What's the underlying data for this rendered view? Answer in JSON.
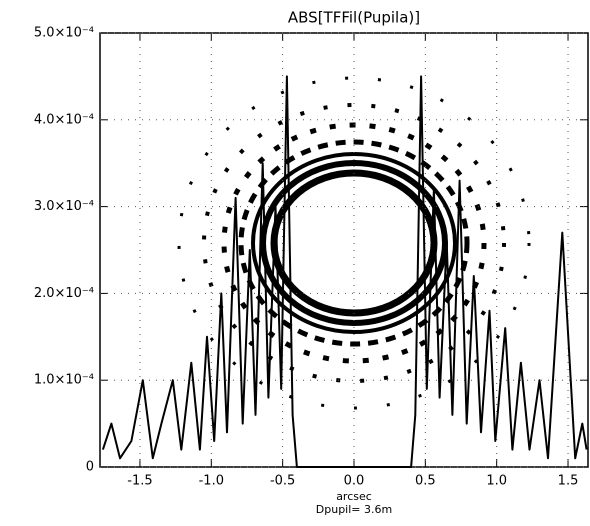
{
  "chart_data": {
    "type": "line",
    "title": "ABS[TFFil(Pupila)]",
    "x_label": "arcsec",
    "subtitle": "Dpupil= 3.6m",
    "x": [
      -1.76,
      -1.7,
      -1.64,
      -1.56,
      -1.48,
      -1.41,
      -1.35,
      -1.27,
      -1.21,
      -1.14,
      -1.08,
      -1.03,
      -0.98,
      -0.93,
      -0.89,
      -0.83,
      -0.78,
      -0.73,
      -0.69,
      -0.64,
      -0.6,
      -0.55,
      -0.51,
      -0.47,
      -0.43,
      -0.4,
      0.4,
      0.43,
      0.47,
      0.51,
      0.56,
      0.6,
      0.65,
      0.69,
      0.74,
      0.79,
      0.84,
      0.89,
      0.95,
      0.99,
      1.06,
      1.11,
      1.17,
      1.23,
      1.3,
      1.36,
      1.46,
      1.55,
      1.6,
      1.63
    ],
    "series": [
      {
        "color": "#000000",
        "values": [
          2e-05,
          5e-05,
          1e-05,
          3e-05,
          0.0001,
          1e-05,
          5e-05,
          0.0001,
          2e-05,
          0.00012,
          2e-05,
          0.00015,
          3e-05,
          0.0002,
          4e-05,
          0.00031,
          5e-05,
          0.00025,
          6e-05,
          0.00035,
          8e-05,
          0.0003,
          9e-05,
          0.00045,
          6e-05,
          0,
          0,
          6e-05,
          0.00045,
          9e-05,
          0.00032,
          8e-05,
          0.00026,
          6e-05,
          0.00033,
          5e-05,
          0.00022,
          4e-05,
          0.00018,
          3e-05,
          0.00016,
          2e-05,
          0.00012,
          2e-05,
          0.0001,
          1e-05,
          0.00027,
          1e-05,
          5e-05,
          2e-05
        ]
      }
    ],
    "xlim": [
      -1.78,
      1.64
    ],
    "xticks": [
      -1.5,
      {
        "value": -1,
        "label": "-1.0"
      },
      -0.5,
      {
        "value": 0,
        "label": "0.0"
      },
      0.5,
      {
        "value": 1,
        "label": "1.0"
      },
      1.5
    ],
    "ylim": [
      0,
      0.0005
    ],
    "yticks": [
      0,
      {
        "value": 0.0001,
        "label": "1.0×10⁻⁴"
      },
      {
        "value": 0.0002,
        "label": "2.0×10⁻⁴"
      },
      {
        "value": 0.0003,
        "label": "3.0×10⁻⁴"
      },
      {
        "value": 0.0004,
        "label": "4.0×10⁻⁴"
      },
      {
        "value": 0.0005,
        "label": "5.0×10⁻⁴"
      }
    ],
    "grid": true
  }
}
